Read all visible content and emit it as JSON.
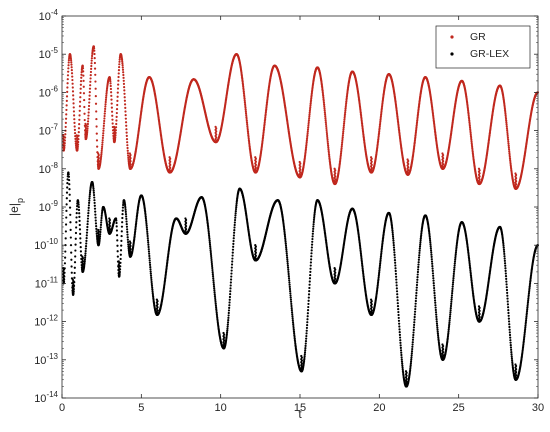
{
  "chart_data": {
    "type": "scatter",
    "title": "",
    "xlabel": "t",
    "ylabel": "|e|",
    "ylabel_subscript": "p",
    "xlim": [
      0,
      30
    ],
    "ylim": [
      1e-14,
      0.0001
    ],
    "yscale": "log",
    "grid": false,
    "legend_position": "top-right",
    "x_ticks": [
      0,
      5,
      10,
      15,
      20,
      25,
      30
    ],
    "y_tick_exponents": [
      -14,
      -13,
      -12,
      -11,
      -10,
      -9,
      -8,
      -7,
      -6,
      -5,
      -4
    ],
    "y_tick_base": "10",
    "series": [
      {
        "name": "GR",
        "color": "#c0281e",
        "marker": "dot",
        "peaks": [
          {
            "t": 0.5,
            "y": 1e-05
          },
          {
            "t": 1.3,
            "y": 5e-06
          },
          {
            "t": 2.0,
            "y": 1.6e-05
          },
          {
            "t": 3.0,
            "y": 2.5e-06
          },
          {
            "t": 3.7,
            "y": 1e-05
          },
          {
            "t": 5.5,
            "y": 2.5e-06
          },
          {
            "t": 8.3,
            "y": 2.2e-06
          },
          {
            "t": 11.0,
            "y": 1e-05
          },
          {
            "t": 13.4,
            "y": 5e-06
          },
          {
            "t": 16.1,
            "y": 4.5e-06
          },
          {
            "t": 18.3,
            "y": 3.5e-06
          },
          {
            "t": 20.6,
            "y": 3e-06
          },
          {
            "t": 22.9,
            "y": 2.5e-06
          },
          {
            "t": 25.2,
            "y": 2e-06
          },
          {
            "t": 27.6,
            "y": 1.5e-06
          },
          {
            "t": 30.0,
            "y": 1e-06
          }
        ],
        "minima": [
          {
            "t": 0.1,
            "y": 3e-08
          },
          {
            "t": 0.95,
            "y": 3e-08
          },
          {
            "t": 1.5,
            "y": 6e-08
          },
          {
            "t": 2.3,
            "y": 1e-08
          },
          {
            "t": 3.3,
            "y": 5e-08
          },
          {
            "t": 4.3,
            "y": 1e-08
          },
          {
            "t": 6.8,
            "y": 8e-09
          },
          {
            "t": 9.7,
            "y": 5e-08
          },
          {
            "t": 12.2,
            "y": 8e-09
          },
          {
            "t": 15.0,
            "y": 6e-09
          },
          {
            "t": 17.2,
            "y": 4e-09
          },
          {
            "t": 19.5,
            "y": 8e-09
          },
          {
            "t": 21.8,
            "y": 7e-09
          },
          {
            "t": 24.0,
            "y": 1e-08
          },
          {
            "t": 26.3,
            "y": 4e-09
          },
          {
            "t": 28.6,
            "y": 3e-09
          }
        ]
      },
      {
        "name": "GR-LEX",
        "color": "#000000",
        "marker": "dot",
        "peaks": [
          {
            "t": 0.4,
            "y": 8e-09
          },
          {
            "t": 1.0,
            "y": 1.5e-09
          },
          {
            "t": 1.9,
            "y": 4.5e-09
          },
          {
            "t": 2.6,
            "y": 1e-09
          },
          {
            "t": 3.4,
            "y": 5e-10
          },
          {
            "t": 3.9,
            "y": 1.5e-09
          },
          {
            "t": 5.0,
            "y": 2e-09
          },
          {
            "t": 7.2,
            "y": 5e-10
          },
          {
            "t": 8.8,
            "y": 1.8e-09
          },
          {
            "t": 11.2,
            "y": 3e-09
          },
          {
            "t": 13.6,
            "y": 1.5e-09
          },
          {
            "t": 16.1,
            "y": 1.5e-09
          },
          {
            "t": 18.3,
            "y": 9e-10
          },
          {
            "t": 20.6,
            "y": 7e-10
          },
          {
            "t": 22.9,
            "y": 6e-10
          },
          {
            "t": 25.2,
            "y": 4e-10
          },
          {
            "t": 27.6,
            "y": 3e-10
          },
          {
            "t": 30.0,
            "y": 1e-10
          }
        ],
        "minima": [
          {
            "t": 0.1,
            "y": 1e-11
          },
          {
            "t": 0.7,
            "y": 5e-12
          },
          {
            "t": 1.3,
            "y": 2e-11
          },
          {
            "t": 2.3,
            "y": 1e-10
          },
          {
            "t": 3.0,
            "y": 2e-10
          },
          {
            "t": 3.6,
            "y": 1.5e-11
          },
          {
            "t": 4.3,
            "y": 5e-11
          },
          {
            "t": 6.0,
            "y": 1.5e-12
          },
          {
            "t": 7.8,
            "y": 2e-10
          },
          {
            "t": 10.2,
            "y": 2e-13
          },
          {
            "t": 12.2,
            "y": 4e-11
          },
          {
            "t": 15.1,
            "y": 5e-14
          },
          {
            "t": 17.2,
            "y": 1e-11
          },
          {
            "t": 19.5,
            "y": 1.5e-12
          },
          {
            "t": 21.7,
            "y": 2e-14
          },
          {
            "t": 24.0,
            "y": 1e-13
          },
          {
            "t": 26.3,
            "y": 1e-12
          },
          {
            "t": 28.6,
            "y": 3e-14
          }
        ]
      }
    ]
  }
}
